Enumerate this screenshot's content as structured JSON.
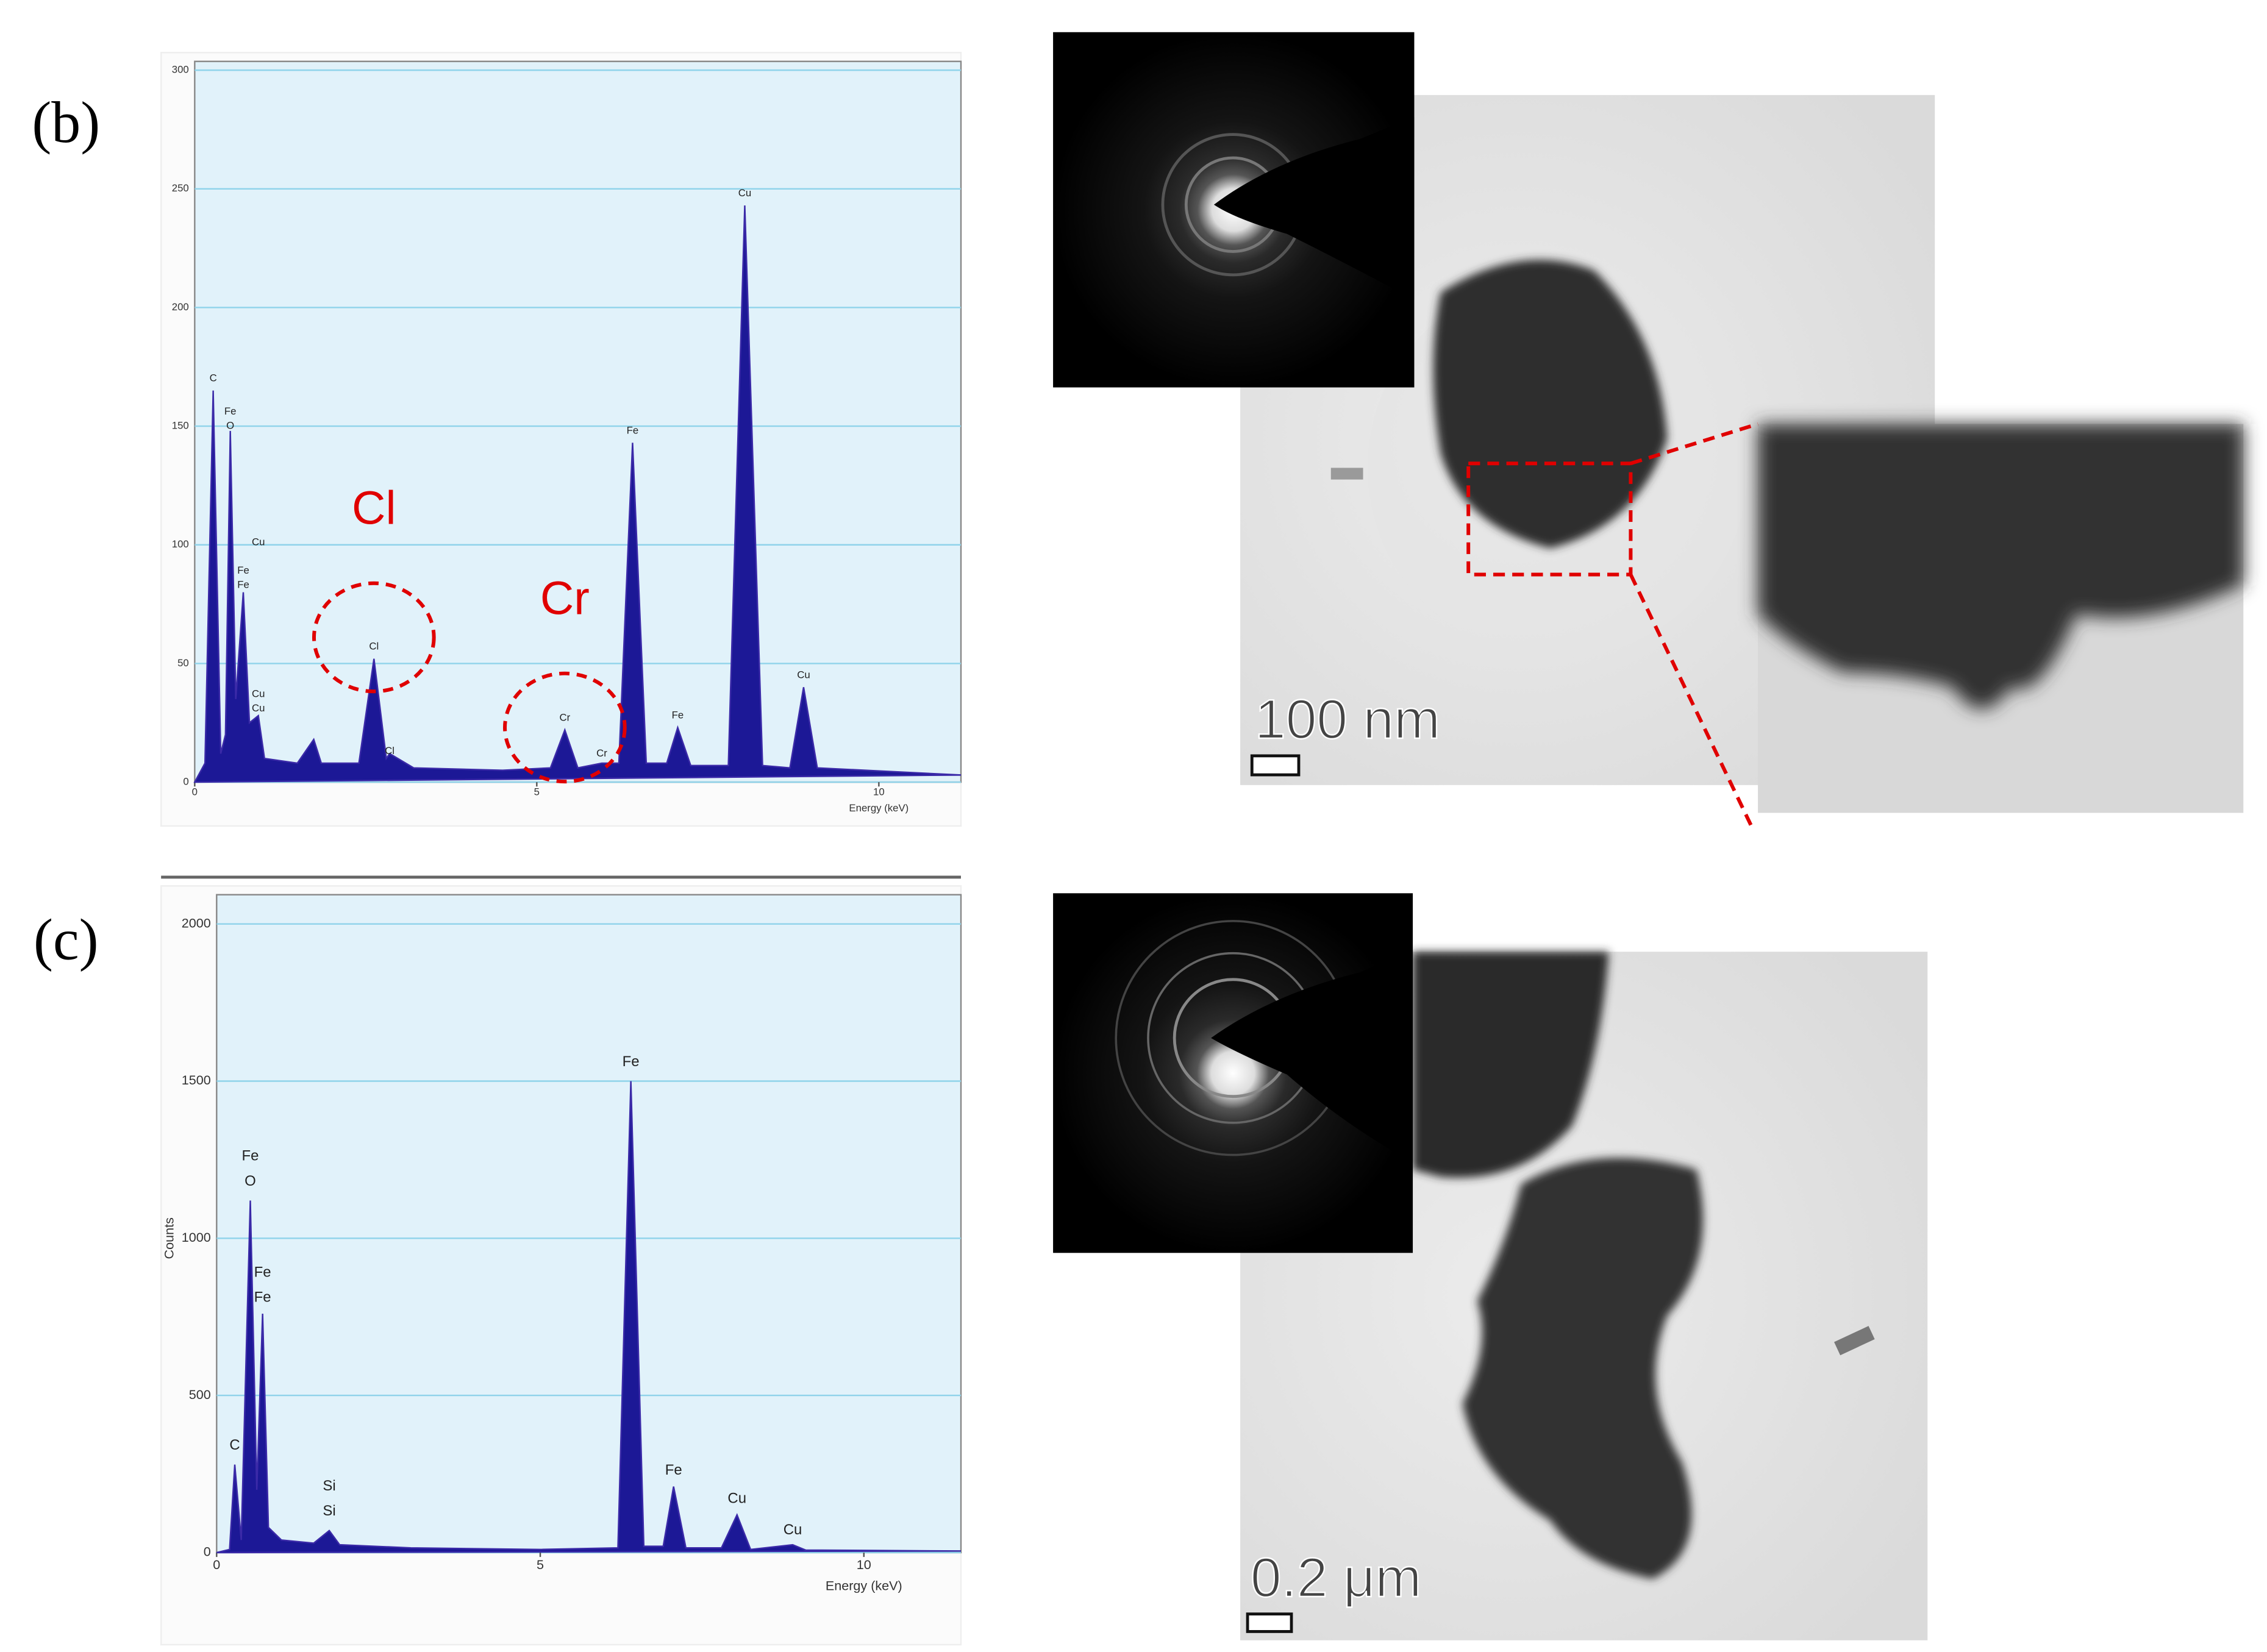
{
  "panel_labels": [
    "(b)",
    "(c)"
  ],
  "images": [
    {
      "scale_bar": "100 nm"
    },
    {
      "scale_bar": "0.2 μm"
    }
  ],
  "chart_data": [
    {
      "type": "line",
      "xlabel": "Energy (keV)",
      "xlim": [
        0,
        11.2
      ],
      "xticks": [
        0,
        5,
        10
      ],
      "ylim": [
        0,
        300
      ],
      "yticks": [
        0,
        50,
        100,
        150,
        200,
        250,
        300
      ],
      "grid": true,
      "color": "#1c1896",
      "x": [
        0,
        0.15,
        0.27,
        0.38,
        0.45,
        0.52,
        0.6,
        0.71,
        0.8,
        0.93,
        1.02,
        1.5,
        1.74,
        1.85,
        2.4,
        2.62,
        2.8,
        2.85,
        3.2,
        4.5,
        5.2,
        5.41,
        5.6,
        5.95,
        6.2,
        6.4,
        6.6,
        6.9,
        7.06,
        7.25,
        7.8,
        8.04,
        8.3,
        8.7,
        8.9,
        9.1,
        11.2
      ],
      "values": [
        0,
        8,
        165,
        12,
        20,
        148,
        35,
        80,
        25,
        28,
        10,
        8,
        18,
        8,
        8,
        52,
        10,
        12,
        6,
        5,
        6,
        22,
        6,
        8,
        8,
        143,
        8,
        8,
        23,
        7,
        7,
        243,
        7,
        6,
        40,
        6,
        3
      ],
      "annotations": [
        {
          "text": "C",
          "x": 0.27,
          "y": 170
        },
        {
          "text": "Fe",
          "x": 0.52,
          "y": 156
        },
        {
          "text": "O",
          "x": 0.52,
          "y": 150
        },
        {
          "text": "Cu",
          "x": 0.93,
          "y": 101
        },
        {
          "text": "Fe",
          "x": 0.71,
          "y": 89
        },
        {
          "text": "Fe",
          "x": 0.71,
          "y": 83
        },
        {
          "text": "Cu",
          "x": 0.93,
          "y": 37
        },
        {
          "text": "Cu",
          "x": 0.93,
          "y": 31
        },
        {
          "text": "Cl",
          "x": 2.62,
          "y": 57
        },
        {
          "text": "Cl",
          "x": 2.85,
          "y": 13
        },
        {
          "text": "Cr",
          "x": 5.41,
          "y": 27
        },
        {
          "text": "Cr",
          "x": 5.95,
          "y": 12
        },
        {
          "text": "Fe",
          "x": 6.4,
          "y": 148
        },
        {
          "text": "Fe",
          "x": 7.06,
          "y": 28
        },
        {
          "text": "Cu",
          "x": 8.04,
          "y": 248
        },
        {
          "text": "Cu",
          "x": 8.9,
          "y": 45
        }
      ],
      "callouts": [
        {
          "text": "Cl",
          "x": 2.62,
          "y": 114
        },
        {
          "text": "Cr",
          "x": 5.41,
          "y": 76
        }
      ]
    },
    {
      "type": "line",
      "xlabel": "Energy (keV)",
      "ylabel": "Counts",
      "xlim": [
        0,
        11.5
      ],
      "xticks": [
        0,
        5,
        10
      ],
      "ylim": [
        0,
        2000
      ],
      "yticks": [
        0,
        500,
        1000,
        1500,
        2000
      ],
      "grid": true,
      "color": "#1c1896",
      "x": [
        0,
        0.2,
        0.28,
        0.38,
        0.52,
        0.62,
        0.71,
        0.8,
        1.0,
        1.5,
        1.74,
        1.9,
        3,
        5,
        6.2,
        6.4,
        6.6,
        6.9,
        7.06,
        7.25,
        7.8,
        8.04,
        8.25,
        8.9,
        9.1,
        11.5
      ],
      "values": [
        0,
        10,
        280,
        40,
        1120,
        200,
        760,
        80,
        40,
        30,
        70,
        25,
        15,
        10,
        15,
        1500,
        20,
        20,
        210,
        15,
        15,
        120,
        10,
        25,
        8,
        5
      ],
      "annotations": [
        {
          "text": "C",
          "x": 0.28,
          "y": 340
        },
        {
          "text": "Fe",
          "x": 0.52,
          "y": 1260
        },
        {
          "text": "O",
          "x": 0.52,
          "y": 1180
        },
        {
          "text": "Fe",
          "x": 0.71,
          "y": 890
        },
        {
          "text": "Fe",
          "x": 0.71,
          "y": 810
        },
        {
          "text": "Si",
          "x": 1.74,
          "y": 210
        },
        {
          "text": "Si",
          "x": 1.74,
          "y": 130
        },
        {
          "text": "Fe",
          "x": 6.4,
          "y": 1560
        },
        {
          "text": "Fe",
          "x": 7.06,
          "y": 260
        },
        {
          "text": "Cu",
          "x": 8.04,
          "y": 170
        },
        {
          "text": "Cu",
          "x": 8.9,
          "y": 70
        }
      ]
    }
  ]
}
